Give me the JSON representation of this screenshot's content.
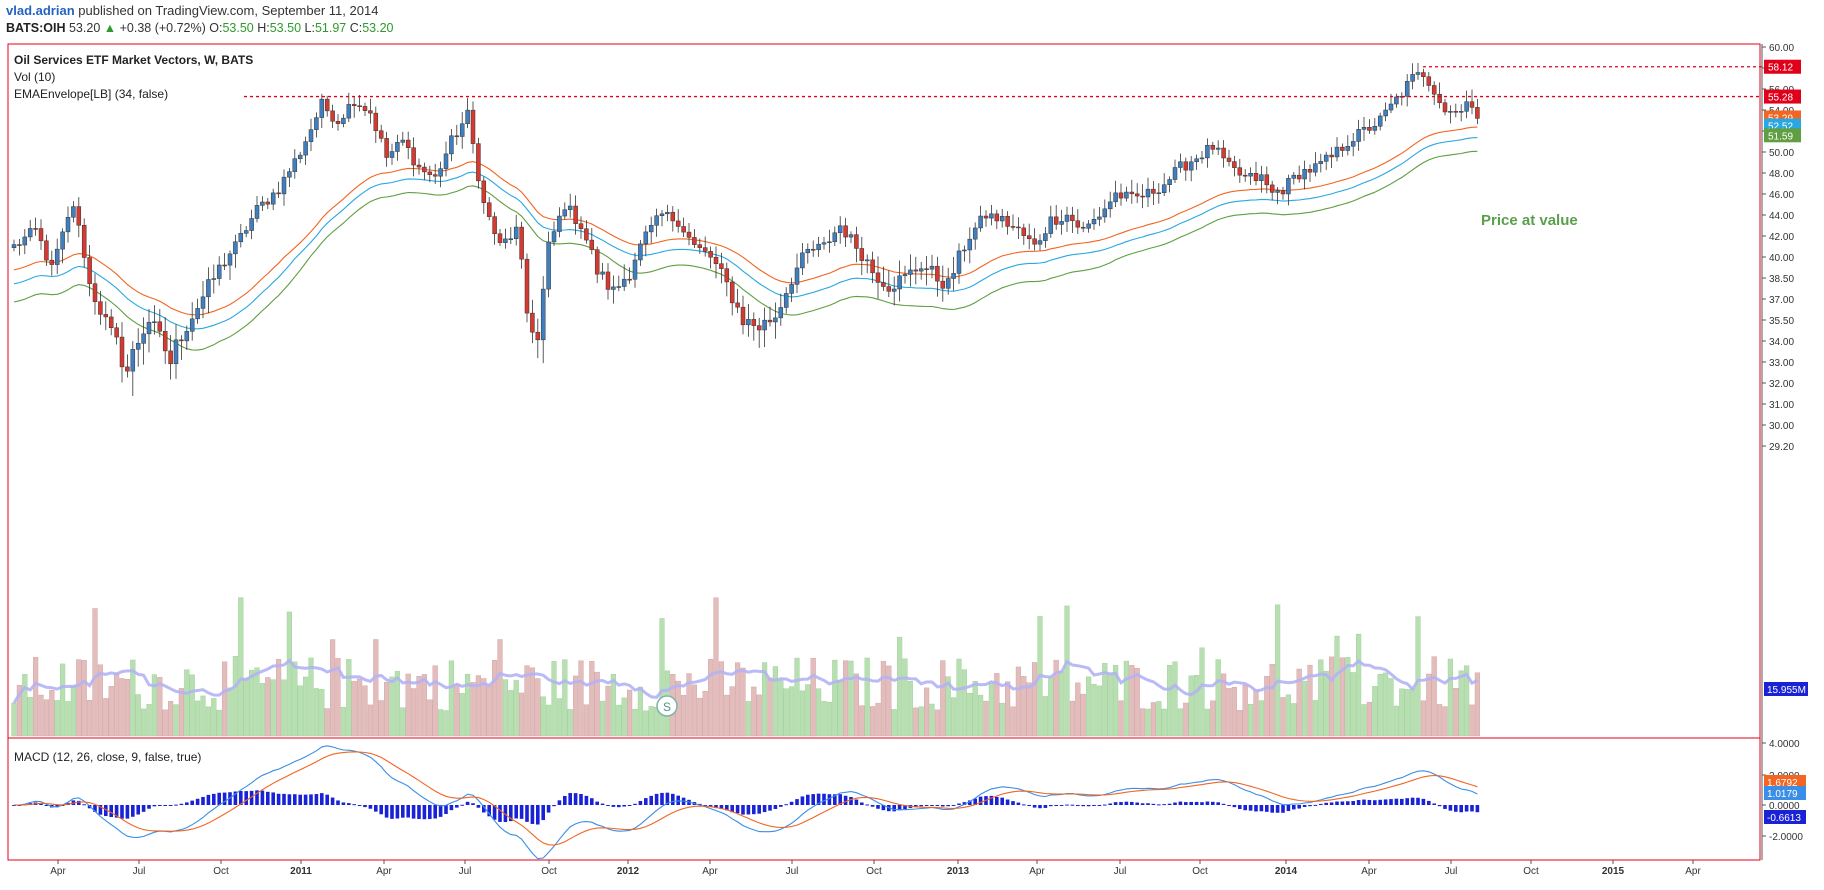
{
  "header": {
    "author": "vlad.adrian",
    "published": "published on TradingView.com, September 11, 2014",
    "symbol": "BATS:OIH",
    "price": "53.20",
    "change": "+0.38 (+0.72%)",
    "o_label": "O:",
    "o": "53.50",
    "h_label": "H:",
    "h": "53.50",
    "l_label": "L:",
    "l": "51.97",
    "c_label": "C:",
    "c": "53.20"
  },
  "legend": {
    "title": "Oil Services ETF Market Vectors, W, BATS",
    "vol": "Vol (10)",
    "envelope": "EMAEnvelope[LB] (34, false)",
    "macd": "MACD (12, 26, close, 9, false, true)"
  },
  "annotation": "Price at value",
  "split_marker": "S",
  "colors": {
    "up": "#3f7fbf",
    "down": "#d43a2f",
    "ema_mid": "#f26522",
    "ema_upper": "#29a8e0",
    "ema_lower": "#5f9e42",
    "vol_up": "#b7dfb1",
    "vol_down": "#e3bcbc",
    "vol_ma": "#b3b3f5",
    "macd": "#3a8ee6",
    "signal": "#f26522",
    "hist": "#1a22d6",
    "resistance": "#e0001a",
    "annotation": "#5aa04a",
    "frame": "#e0001a"
  },
  "chart_data": [
    {
      "type": "candlestick",
      "name": "OIH weekly",
      "y_axis_ticks": [
        "60.00",
        "58.00",
        "56.00",
        "54.00",
        "52.00",
        "50.00",
        "48.00",
        "46.00",
        "44.00",
        "42.00",
        "40.00",
        "38.50",
        "37.00",
        "35.50",
        "34.00",
        "33.00",
        "32.00",
        "31.00",
        "30.00",
        "29.20"
      ],
      "x_axis_ticks": [
        "Apr",
        "Jul",
        "Oct",
        "2011",
        "Apr",
        "Jul",
        "Oct",
        "2012",
        "Apr",
        "Jul",
        "Oct",
        "2013",
        "Apr",
        "Jul",
        "Oct",
        "2014",
        "Apr",
        "Jul",
        "Oct",
        "2015",
        "Apr"
      ],
      "anchors": [
        {
          "week": 0,
          "price": 41
        },
        {
          "week": 4,
          "price": 42.5
        },
        {
          "week": 7,
          "price": 39
        },
        {
          "week": 11,
          "price": 45
        },
        {
          "week": 14,
          "price": 38
        },
        {
          "week": 18,
          "price": 34.5
        },
        {
          "week": 21,
          "price": 32.6
        },
        {
          "week": 25,
          "price": 35.5
        },
        {
          "week": 29,
          "price": 33
        },
        {
          "week": 33,
          "price": 35.8
        },
        {
          "week": 37,
          "price": 38.5
        },
        {
          "week": 41,
          "price": 41
        },
        {
          "week": 45,
          "price": 44.5
        },
        {
          "week": 49,
          "price": 46.5
        },
        {
          "week": 53,
          "price": 50
        },
        {
          "week": 57,
          "price": 54.5
        },
        {
          "week": 60,
          "price": 53
        },
        {
          "week": 63,
          "price": 55
        },
        {
          "week": 66,
          "price": 53.8
        },
        {
          "week": 69,
          "price": 49.5
        },
        {
          "week": 72,
          "price": 51
        },
        {
          "week": 75,
          "price": 48.5
        },
        {
          "week": 78,
          "price": 47.5
        },
        {
          "week": 81,
          "price": 51
        },
        {
          "week": 84,
          "price": 53.5
        },
        {
          "week": 87,
          "price": 45
        },
        {
          "week": 90,
          "price": 41
        },
        {
          "week": 93,
          "price": 42.5
        },
        {
          "week": 95,
          "price": 36
        },
        {
          "week": 97,
          "price": 34
        },
        {
          "week": 99,
          "price": 41
        },
        {
          "week": 102,
          "price": 45
        },
        {
          "week": 105,
          "price": 43
        },
        {
          "week": 108,
          "price": 39
        },
        {
          "week": 111,
          "price": 37.5
        },
        {
          "week": 114,
          "price": 39
        },
        {
          "week": 117,
          "price": 42
        },
        {
          "week": 120,
          "price": 44
        },
        {
          "week": 123,
          "price": 43.5
        },
        {
          "week": 126,
          "price": 41
        },
        {
          "week": 129,
          "price": 40
        },
        {
          "week": 132,
          "price": 38
        },
        {
          "week": 135,
          "price": 35.5
        },
        {
          "week": 138,
          "price": 35
        },
        {
          "week": 141,
          "price": 35.8
        },
        {
          "week": 144,
          "price": 38.5
        },
        {
          "week": 147,
          "price": 40.5
        },
        {
          "week": 150,
          "price": 41
        },
        {
          "week": 153,
          "price": 43
        },
        {
          "week": 156,
          "price": 41
        },
        {
          "week": 159,
          "price": 39
        },
        {
          "week": 162,
          "price": 38
        },
        {
          "week": 165,
          "price": 38.5
        },
        {
          "week": 168,
          "price": 39.5
        },
        {
          "week": 171,
          "price": 38.5
        },
        {
          "week": 173,
          "price": 38
        },
        {
          "week": 175,
          "price": 40
        },
        {
          "week": 177,
          "price": 42
        },
        {
          "week": 180,
          "price": 44
        },
        {
          "week": 183,
          "price": 43.5
        },
        {
          "week": 186,
          "price": 42.5
        },
        {
          "week": 189,
          "price": 41
        },
        {
          "week": 192,
          "price": 43.5
        },
        {
          "week": 195,
          "price": 44
        },
        {
          "week": 198,
          "price": 42.5
        },
        {
          "week": 201,
          "price": 44
        },
        {
          "week": 204,
          "price": 46
        },
        {
          "week": 207,
          "price": 45.5
        },
        {
          "week": 210,
          "price": 46
        },
        {
          "week": 213,
          "price": 47
        },
        {
          "week": 216,
          "price": 48.5
        },
        {
          "week": 219,
          "price": 49.5
        },
        {
          "week": 222,
          "price": 50.5
        },
        {
          "week": 225,
          "price": 48.5
        },
        {
          "week": 228,
          "price": 47.5
        },
        {
          "week": 231,
          "price": 47.5
        },
        {
          "week": 233,
          "price": 46
        },
        {
          "week": 235,
          "price": 46.5
        },
        {
          "week": 238,
          "price": 48
        },
        {
          "week": 241,
          "price": 48.5
        },
        {
          "week": 244,
          "price": 49.5
        },
        {
          "week": 247,
          "price": 51
        },
        {
          "week": 250,
          "price": 52
        },
        {
          "week": 253,
          "price": 53
        },
        {
          "week": 256,
          "price": 55
        },
        {
          "week": 259,
          "price": 57
        },
        {
          "week": 261,
          "price": 57.5
        },
        {
          "week": 263,
          "price": 56
        },
        {
          "week": 265,
          "price": 54
        },
        {
          "week": 267,
          "price": 53.8
        },
        {
          "week": 269,
          "price": 55
        },
        {
          "week": 271,
          "price": 53.2
        }
      ]
    },
    {
      "type": "line",
      "name": "resistance",
      "values": [
        55.28,
        58.12
      ],
      "price_labels": [
        "58.12",
        "55.28",
        "53.29",
        "52.52",
        "51.59"
      ]
    },
    {
      "type": "bar",
      "name": "Vol (10)",
      "last_value": "15.955M"
    },
    {
      "type": "line",
      "name": "MACD",
      "y_axis_ticks": [
        "4.0000",
        "2.0000",
        "0.0000",
        "-2.0000"
      ],
      "price_labels": [
        "1.6792",
        "1.0179",
        "-0.6613"
      ]
    }
  ]
}
